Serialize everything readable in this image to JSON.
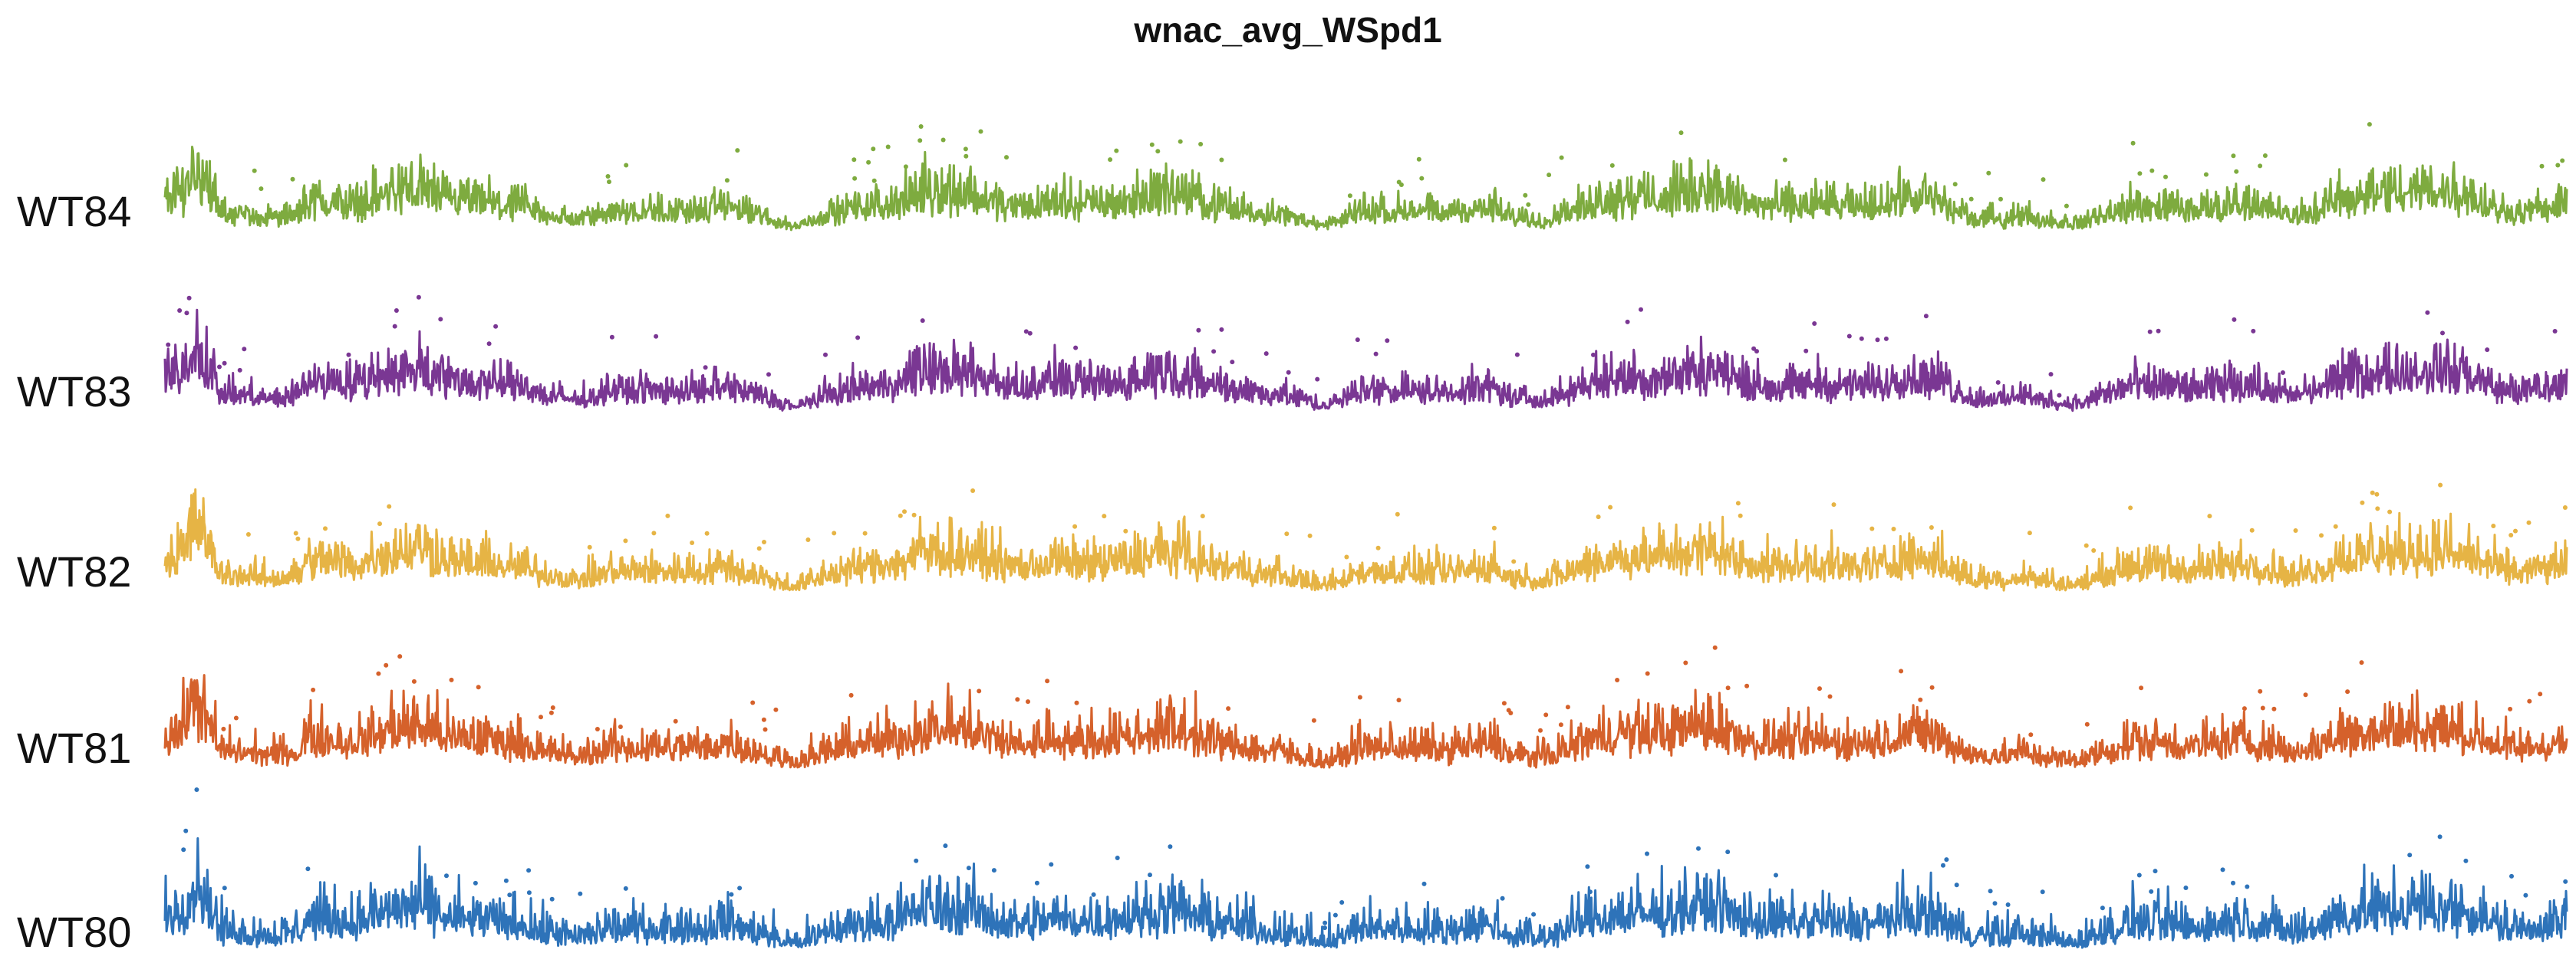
{
  "chart_data": {
    "type": "scatter",
    "title": "wnac_avg_WSpd1",
    "xlabel": "",
    "ylabel": "",
    "grid": false,
    "legend": "none",
    "series": [
      {
        "name": "WT84",
        "color": "#7eab3f"
      },
      {
        "name": "WT83",
        "color": "#7a3793"
      },
      {
        "name": "WT82",
        "color": "#e6b445"
      },
      {
        "name": "WT81",
        "color": "#d5612b"
      },
      {
        "name": "WT80",
        "color": "#2e73b9"
      }
    ]
  }
}
